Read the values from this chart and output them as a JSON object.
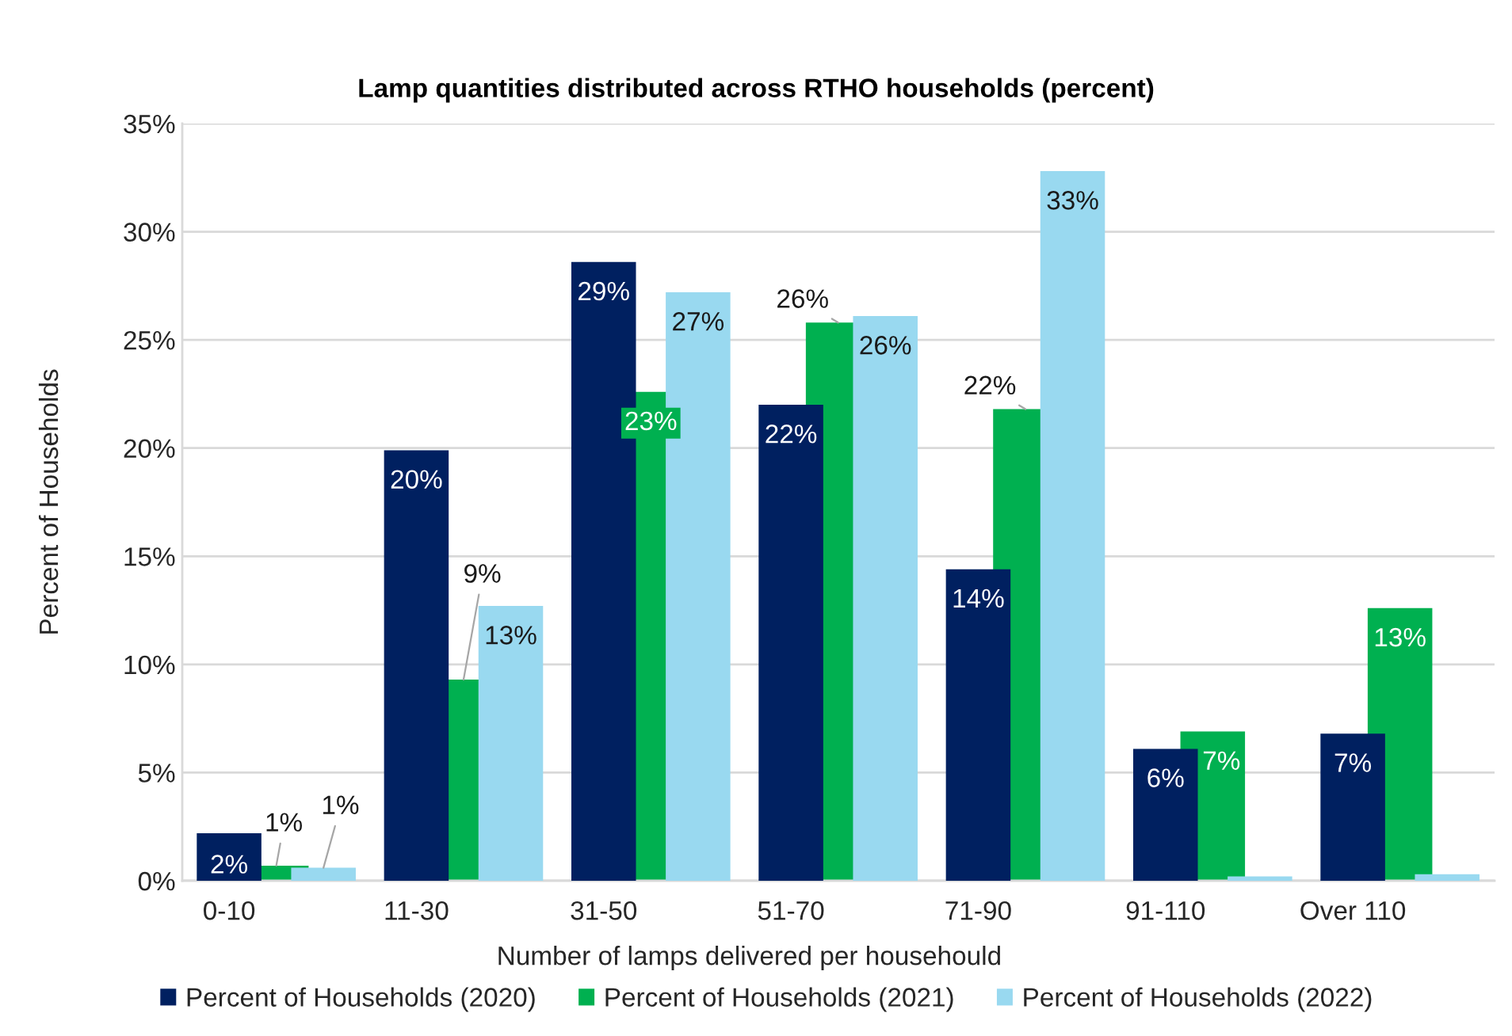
{
  "chart_data": {
    "type": "bar",
    "title": "Lamp quantities distributed across RTHO households (percent)",
    "xlabel": "Number of lamps delivered per househould",
    "ylabel": "Percent of Households",
    "categories": [
      "0-10",
      "11-30",
      "31-50",
      "51-70",
      "71-90",
      "91-110",
      "Over 110"
    ],
    "series": [
      {
        "name": "Percent of Households (2020)",
        "color": "#002060",
        "values": [
          2.2,
          19.9,
          28.6,
          22.0,
          14.4,
          6.1,
          6.8
        ],
        "value_labels": [
          "2%",
          "20%",
          "29%",
          "22%",
          "14%",
          "6%",
          "7%"
        ]
      },
      {
        "name": "Percent of Households (2021)",
        "color": "#00b050",
        "values": [
          0.7,
          9.3,
          22.6,
          25.8,
          21.8,
          6.9,
          12.6
        ],
        "value_labels": [
          "1%",
          "9%",
          "23%",
          "26%",
          "22%",
          "7%",
          "13%"
        ]
      },
      {
        "name": "Percent of Households (2022)",
        "color": "#99d9f0",
        "values": [
          0.6,
          12.7,
          27.2,
          26.1,
          32.8,
          0.2,
          0.3
        ],
        "value_labels": [
          "1%",
          "13%",
          "27%",
          "26%",
          "33%",
          null,
          null
        ]
      }
    ],
    "ylim": [
      0,
      35
    ],
    "yticks": [
      {
        "value": 0,
        "label": "0%"
      },
      {
        "value": 5,
        "label": "5%"
      },
      {
        "value": 10,
        "label": "10%"
      },
      {
        "value": 15,
        "label": "15%"
      },
      {
        "value": 20,
        "label": "20%"
      },
      {
        "value": 25,
        "label": "25%"
      },
      {
        "value": 30,
        "label": "30%"
      },
      {
        "value": 35,
        "label": "35%"
      }
    ],
    "grid": "y",
    "legend": "bottom"
  }
}
